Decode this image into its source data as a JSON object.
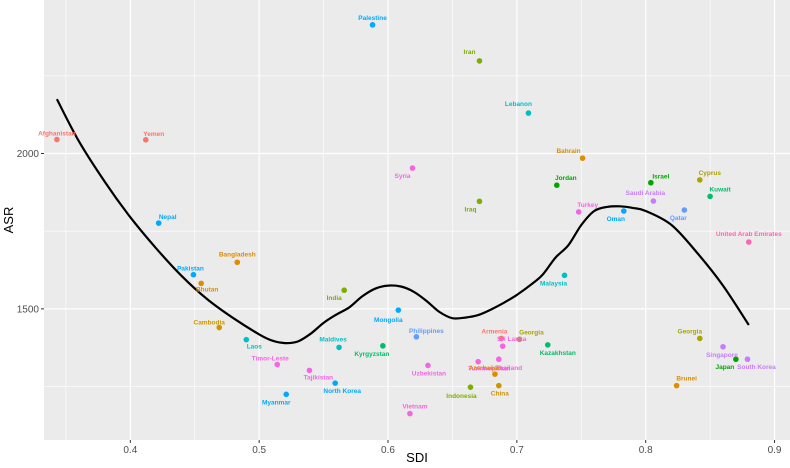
{
  "chart_data": {
    "type": "scatter",
    "xlabel": "SDI",
    "ylabel": "ASR",
    "xlim": [
      0.333,
      0.912
    ],
    "ylim": [
      1078,
      2494
    ],
    "x_ticks": [
      0.4,
      0.5,
      0.6,
      0.7,
      0.8,
      0.9
    ],
    "x_tick_labels": [
      "0.4",
      "0.5",
      "0.6",
      "0.7",
      "0.8",
      "0.9"
    ],
    "y_ticks": [
      1500,
      2000
    ],
    "y_tick_labels": [
      "1500",
      "2000"
    ],
    "grid": true,
    "legend": "none",
    "points": [
      {
        "label": "Afghanistan",
        "x": 0.343,
        "y": 2045,
        "color": "#F8766D"
      },
      {
        "label": "Yemen",
        "x": 0.412,
        "y": 2044,
        "color": "#F8766D"
      },
      {
        "label": "Nepal",
        "x": 0.422,
        "y": 1776,
        "color": "#00A9FF"
      },
      {
        "label": "Pakistan",
        "x": 0.449,
        "y": 1610,
        "color": "#00A9FF"
      },
      {
        "label": "Bhutan",
        "x": 0.455,
        "y": 1582,
        "color": "#DE8C00"
      },
      {
        "label": "Bangladesh",
        "x": 0.483,
        "y": 1650,
        "color": "#DE8C00"
      },
      {
        "label": "Cambodia",
        "x": 0.469,
        "y": 1440,
        "color": "#CD9600"
      },
      {
        "label": "Laos",
        "x": 0.49,
        "y": 1401,
        "color": "#00BFC4"
      },
      {
        "label": "Timor-Leste",
        "x": 0.514,
        "y": 1321,
        "color": "#F564E3"
      },
      {
        "label": "Myanmar",
        "x": 0.521,
        "y": 1225,
        "color": "#00A9FF"
      },
      {
        "label": "Tajikistan",
        "x": 0.539,
        "y": 1302,
        "color": "#F564E3"
      },
      {
        "label": "North Korea",
        "x": 0.559,
        "y": 1261,
        "color": "#00A9FF"
      },
      {
        "label": "Maldives",
        "x": 0.562,
        "y": 1376,
        "color": "#00BFC4"
      },
      {
        "label": "India",
        "x": 0.566,
        "y": 1560,
        "color": "#7CAE00"
      },
      {
        "label": "Palestine",
        "x": 0.588,
        "y": 2414,
        "color": "#00A9FF"
      },
      {
        "label": "Kyrgyzstan",
        "x": 0.596,
        "y": 1381,
        "color": "#00BE67"
      },
      {
        "label": "Mongolia",
        "x": 0.608,
        "y": 1496,
        "color": "#00A9FF"
      },
      {
        "label": "Vietnam",
        "x": 0.617,
        "y": 1163,
        "color": "#F564E3"
      },
      {
        "label": "Syria",
        "x": 0.619,
        "y": 1953,
        "color": "#F564E3"
      },
      {
        "label": "Philippines",
        "x": 0.622,
        "y": 1410,
        "color": "#619CFF"
      },
      {
        "label": "Uzbekistan",
        "x": 0.631,
        "y": 1318,
        "color": "#F564E3"
      },
      {
        "label": "Indonesia",
        "x": 0.664,
        "y": 1248,
        "color": "#7CAE00"
      },
      {
        "label": "Iran",
        "x": 0.671,
        "y": 2298,
        "color": "#7CAE00"
      },
      {
        "label": "Iraq",
        "x": 0.671,
        "y": 1846,
        "color": "#7CAE00"
      },
      {
        "label": "Turkmenistan",
        "x": 0.67,
        "y": 1330,
        "color": "#F564E3"
      },
      {
        "label": "Azerbaijan",
        "x": 0.683,
        "y": 1290,
        "color": "#DE8C00"
      },
      {
        "label": "China",
        "x": 0.686,
        "y": 1253,
        "color": "#CD9600"
      },
      {
        "label": "Armenia",
        "x": 0.688,
        "y": 1405,
        "color": "#F8766D"
      },
      {
        "label": "Thailand",
        "x": 0.686,
        "y": 1338,
        "color": "#F564E3"
      },
      {
        "label": "Sri Lanka",
        "x": 0.689,
        "y": 1380,
        "color": "#F564E3"
      },
      {
        "label": "Georgia",
        "x": 0.702,
        "y": 1402,
        "color": "#ABA300"
      },
      {
        "label": "Lebanon",
        "x": 0.709,
        "y": 2130,
        "color": "#00BFC4"
      },
      {
        "label": "Jordan",
        "x": 0.731,
        "y": 1898,
        "color": "#00A600"
      },
      {
        "label": "Kazakhstan",
        "x": 0.724,
        "y": 1384,
        "color": "#00BE67"
      },
      {
        "label": "Malaysia",
        "x": 0.737,
        "y": 1608,
        "color": "#00BFC4"
      },
      {
        "label": "Turkey",
        "x": 0.748,
        "y": 1812,
        "color": "#F564E3"
      },
      {
        "label": "Bahrain",
        "x": 0.751,
        "y": 1985,
        "color": "#DE8C00"
      },
      {
        "label": "Oman",
        "x": 0.783,
        "y": 1815,
        "color": "#00A9FF"
      },
      {
        "label": "Israel",
        "x": 0.804,
        "y": 1906,
        "color": "#00A600"
      },
      {
        "label": "Saudi Arabia",
        "x": 0.806,
        "y": 1847,
        "color": "#C77CFF"
      },
      {
        "label": "Brunei",
        "x": 0.824,
        "y": 1253,
        "color": "#DE8C00"
      },
      {
        "label": "Qatar",
        "x": 0.83,
        "y": 1818,
        "color": "#619CFF"
      },
      {
        "label": "Georgia",
        "x": 0.842,
        "y": 1405,
        "color": "#ABA300"
      },
      {
        "label": "Cyprus",
        "x": 0.842,
        "y": 1915,
        "color": "#ABA300"
      },
      {
        "label": "Kuwait",
        "x": 0.85,
        "y": 1862,
        "color": "#00BE67"
      },
      {
        "label": "Singapore",
        "x": 0.86,
        "y": 1378,
        "color": "#C77CFF"
      },
      {
        "label": "Japan",
        "x": 0.87,
        "y": 1338,
        "color": "#00A600"
      },
      {
        "label": "South Korea",
        "x": 0.879,
        "y": 1338,
        "color": "#C77CFF"
      },
      {
        "label": "United Arab Emirates",
        "x": 0.88,
        "y": 1715,
        "color": "#FF64B0"
      }
    ],
    "trend": {
      "color": "#000000",
      "x": [
        0.343,
        0.36,
        0.38,
        0.4,
        0.42,
        0.44,
        0.46,
        0.48,
        0.5,
        0.51,
        0.52,
        0.53,
        0.54,
        0.55,
        0.56,
        0.57,
        0.58,
        0.59,
        0.6,
        0.61,
        0.62,
        0.63,
        0.64,
        0.65,
        0.66,
        0.67,
        0.68,
        0.69,
        0.7,
        0.71,
        0.72,
        0.73,
        0.74,
        0.75,
        0.76,
        0.77,
        0.78,
        0.79,
        0.8,
        0.82,
        0.84,
        0.86,
        0.88
      ],
      "y": [
        2175,
        2040,
        1910,
        1795,
        1695,
        1605,
        1530,
        1470,
        1418,
        1398,
        1390,
        1395,
        1420,
        1455,
        1482,
        1505,
        1540,
        1565,
        1575,
        1572,
        1555,
        1525,
        1490,
        1470,
        1472,
        1480,
        1498,
        1520,
        1545,
        1575,
        1610,
        1665,
        1705,
        1770,
        1815,
        1828,
        1830,
        1825,
        1815,
        1770,
        1680,
        1575,
        1448
      ]
    },
    "label_offsets": [
      [
        0,
        -6,
        "middle"
      ],
      [
        8,
        -6,
        "middle"
      ],
      [
        9,
        -6,
        "middle"
      ],
      [
        -3,
        -6,
        "middle"
      ],
      [
        6,
        6,
        "middle"
      ],
      [
        0,
        -8,
        "middle"
      ],
      [
        -10,
        -5,
        "middle"
      ],
      [
        8,
        7,
        "middle"
      ],
      [
        -7,
        -6,
        "middle"
      ],
      [
        -10,
        8,
        "middle"
      ],
      [
        9,
        7,
        "middle"
      ],
      [
        7,
        8,
        "middle"
      ],
      [
        -6,
        -8,
        "middle"
      ],
      [
        -10,
        8,
        "middle"
      ],
      [
        0,
        -7,
        "middle"
      ],
      [
        -11,
        8,
        "middle"
      ],
      [
        -10,
        10,
        "middle"
      ],
      [
        5,
        -7,
        "middle"
      ],
      [
        -10,
        8,
        "middle"
      ],
      [
        10,
        -6,
        "middle"
      ],
      [
        1,
        8,
        "middle"
      ],
      [
        -9,
        9,
        "middle"
      ],
      [
        -10,
        -9,
        "middle"
      ],
      [
        -9,
        8,
        "middle"
      ],
      [
        11,
        7,
        "middle"
      ],
      [
        -10,
        -6,
        "middle"
      ],
      [
        1,
        8,
        "middle"
      ],
      [
        -7,
        -7,
        "middle"
      ],
      [
        10,
        9,
        "middle"
      ],
      [
        9,
        -7,
        "middle"
      ],
      [
        12,
        -7,
        "middle"
      ],
      [
        -10,
        -9,
        "middle"
      ],
      [
        9,
        -7,
        "middle"
      ],
      [
        10,
        8,
        "middle"
      ],
      [
        -11,
        8,
        "middle"
      ],
      [
        9,
        -7,
        "middle"
      ],
      [
        -14,
        -7,
        "middle"
      ],
      [
        -8,
        8,
        "middle"
      ],
      [
        10,
        -6,
        "middle"
      ],
      [
        -8,
        -8,
        "middle"
      ],
      [
        10,
        -7,
        "middle"
      ],
      [
        -6,
        8,
        "middle"
      ],
      [
        -10,
        -7,
        "middle"
      ],
      [
        10,
        -7,
        "middle"
      ],
      [
        10,
        -7,
        "middle"
      ],
      [
        -1,
        8,
        "middle"
      ],
      [
        -11,
        8,
        "middle"
      ],
      [
        9,
        8,
        "middle"
      ],
      [
        0,
        -8,
        "middle"
      ]
    ]
  }
}
